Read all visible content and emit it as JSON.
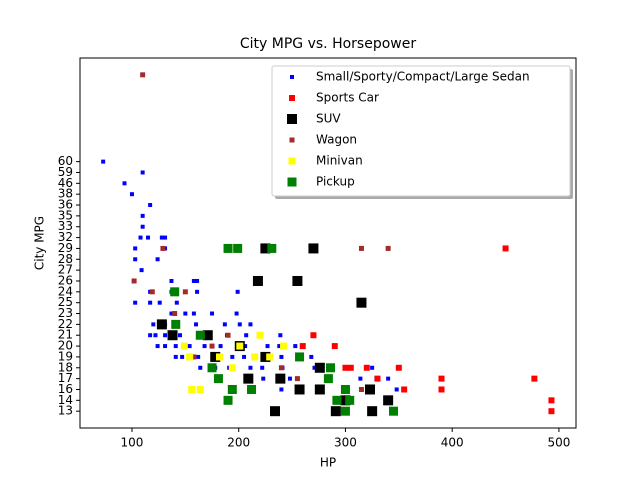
{
  "chart_data": {
    "type": "scatter",
    "title": "City MPG vs. Horsepower",
    "x_label": "HP",
    "y_label": "City MPG",
    "xlim": [
      51.3,
      516
    ],
    "xticks": [
      100,
      200,
      300,
      400,
      500
    ],
    "ylim": [
      -1.55,
      32.55
    ],
    "yticks": [
      {
        "value": 0,
        "label": "13"
      },
      {
        "value": 1,
        "label": "14"
      },
      {
        "value": 2,
        "label": "16"
      },
      {
        "value": 3,
        "label": "17"
      },
      {
        "value": 4,
        "label": "18"
      },
      {
        "value": 5,
        "label": "19"
      },
      {
        "value": 6,
        "label": "20"
      },
      {
        "value": 7,
        "label": "21"
      },
      {
        "value": 8,
        "label": "22"
      },
      {
        "value": 9,
        "label": "23"
      },
      {
        "value": 10,
        "label": "25"
      },
      {
        "value": 11,
        "label": "24"
      },
      {
        "value": 12,
        "label": "26"
      },
      {
        "value": 13,
        "label": "27"
      },
      {
        "value": 14,
        "label": "28"
      },
      {
        "value": 15,
        "label": "29"
      },
      {
        "value": 16,
        "label": "32"
      },
      {
        "value": 17,
        "label": "33"
      },
      {
        "value": 18,
        "label": "35"
      },
      {
        "value": 19,
        "label": "36"
      },
      {
        "value": 20,
        "label": "38"
      },
      {
        "value": 21,
        "label": "46"
      },
      {
        "value": 22,
        "label": "59"
      },
      {
        "value": 23,
        "label": "60"
      }
    ],
    "legend": "upper right",
    "series": [
      {
        "name": "Small/Sporty/Compact/Large Sedan",
        "color": "#0000ff",
        "marker_size": 4,
        "x": [
          73,
          93,
          100,
          110,
          117,
          110,
          110,
          192,
          240,
          323,
          348,
          209,
          223,
          248,
          314,
          329,
          340,
          390,
          164,
          178,
          191,
          211,
          222,
          241,
          271,
          300,
          325,
          141,
          147,
          162,
          177,
          194,
          205,
          223,
          240,
          268,
          124,
          131,
          141,
          154,
          168,
          183,
          206,
          227,
          238,
          253,
          117,
          122,
          131,
          145,
          163,
          170,
          189,
          207,
          220,
          239,
          120,
          131,
          141,
          160,
          187,
          201,
          211,
          137,
          150,
          158,
          175,
          198,
          103,
          117,
          126,
          142,
          117,
          137,
          161,
          199,
          137,
          158,
          161,
          109,
          103,
          124,
          103,
          131,
          108,
          115,
          128,
          131
        ],
        "y": [
          23,
          21,
          20,
          22,
          19,
          18,
          17,
          2,
          2,
          2,
          2,
          3,
          3,
          3,
          3,
          3,
          3,
          3,
          4,
          4,
          4,
          4,
          4,
          4,
          4,
          4,
          4,
          5,
          5,
          5,
          5,
          5,
          5,
          5,
          5,
          5,
          6,
          6,
          6,
          6,
          6,
          6,
          6,
          6,
          6,
          6,
          7,
          7,
          7,
          7,
          7,
          7,
          7,
          7,
          7,
          7,
          8,
          8,
          8,
          8,
          8,
          8,
          8,
          9,
          9,
          9,
          9,
          9,
          10,
          10,
          10,
          10,
          11,
          11,
          11,
          11,
          12,
          12,
          12,
          13,
          14,
          14,
          15,
          15,
          16,
          16,
          16,
          16
        ]
      },
      {
        "name": "Sports Car",
        "color": "#ff0000",
        "marker_size": 6,
        "x": [
          450,
          493,
          493,
          390,
          355,
          390,
          477,
          305,
          320,
          350,
          330,
          260,
          290,
          270,
          300
        ],
        "y": [
          15,
          0,
          1,
          2,
          2,
          3,
          3,
          4,
          4,
          4,
          3,
          6,
          6,
          7,
          4
        ]
      },
      {
        "name": "SUV",
        "color": "#000000",
        "marker_size": 10,
        "x": [
          225,
          270,
          218,
          255,
          315,
          234,
          291,
          325,
          300,
          340,
          257,
          276,
          323,
          128,
          138,
          171,
          201,
          178,
          225,
          276,
          209,
          239
        ],
        "y": [
          15,
          15,
          12,
          12,
          10,
          0,
          0,
          0,
          1,
          1,
          2,
          2,
          2,
          8,
          7,
          7,
          6,
          5,
          5,
          4,
          3,
          3
        ]
      },
      {
        "name": "Wagon",
        "color": "#a52a2a",
        "marker_size": 5,
        "x": [
          110,
          129,
          315,
          340,
          102,
          119,
          150,
          140,
          158,
          175,
          190,
          240,
          255,
          315
        ],
        "y": [
          31,
          15,
          15,
          15,
          12,
          11,
          11,
          9,
          5,
          6,
          7,
          4,
          3,
          2
        ]
      },
      {
        "name": "Minivan",
        "color": "#ffff00",
        "marker_size": 7,
        "x": [
          149,
          154,
          182,
          156,
          201,
          215,
          229,
          242,
          164,
          220,
          194
        ],
        "y": [
          6,
          5,
          5,
          2,
          6,
          5,
          5,
          6,
          2,
          7,
          4
        ]
      },
      {
        "name": "Pickup",
        "color": "#008000",
        "marker_size": 9,
        "x": [
          190,
          199,
          231,
          140,
          141,
          164,
          175,
          181,
          190,
          194,
          212,
          284,
          286,
          300,
          292,
          304,
          300,
          345,
          257
        ],
        "y": [
          15,
          15,
          15,
          11,
          8,
          7,
          4,
          3,
          1,
          2,
          2,
          3,
          4,
          2,
          1,
          1,
          0,
          0,
          5
        ]
      }
    ]
  }
}
